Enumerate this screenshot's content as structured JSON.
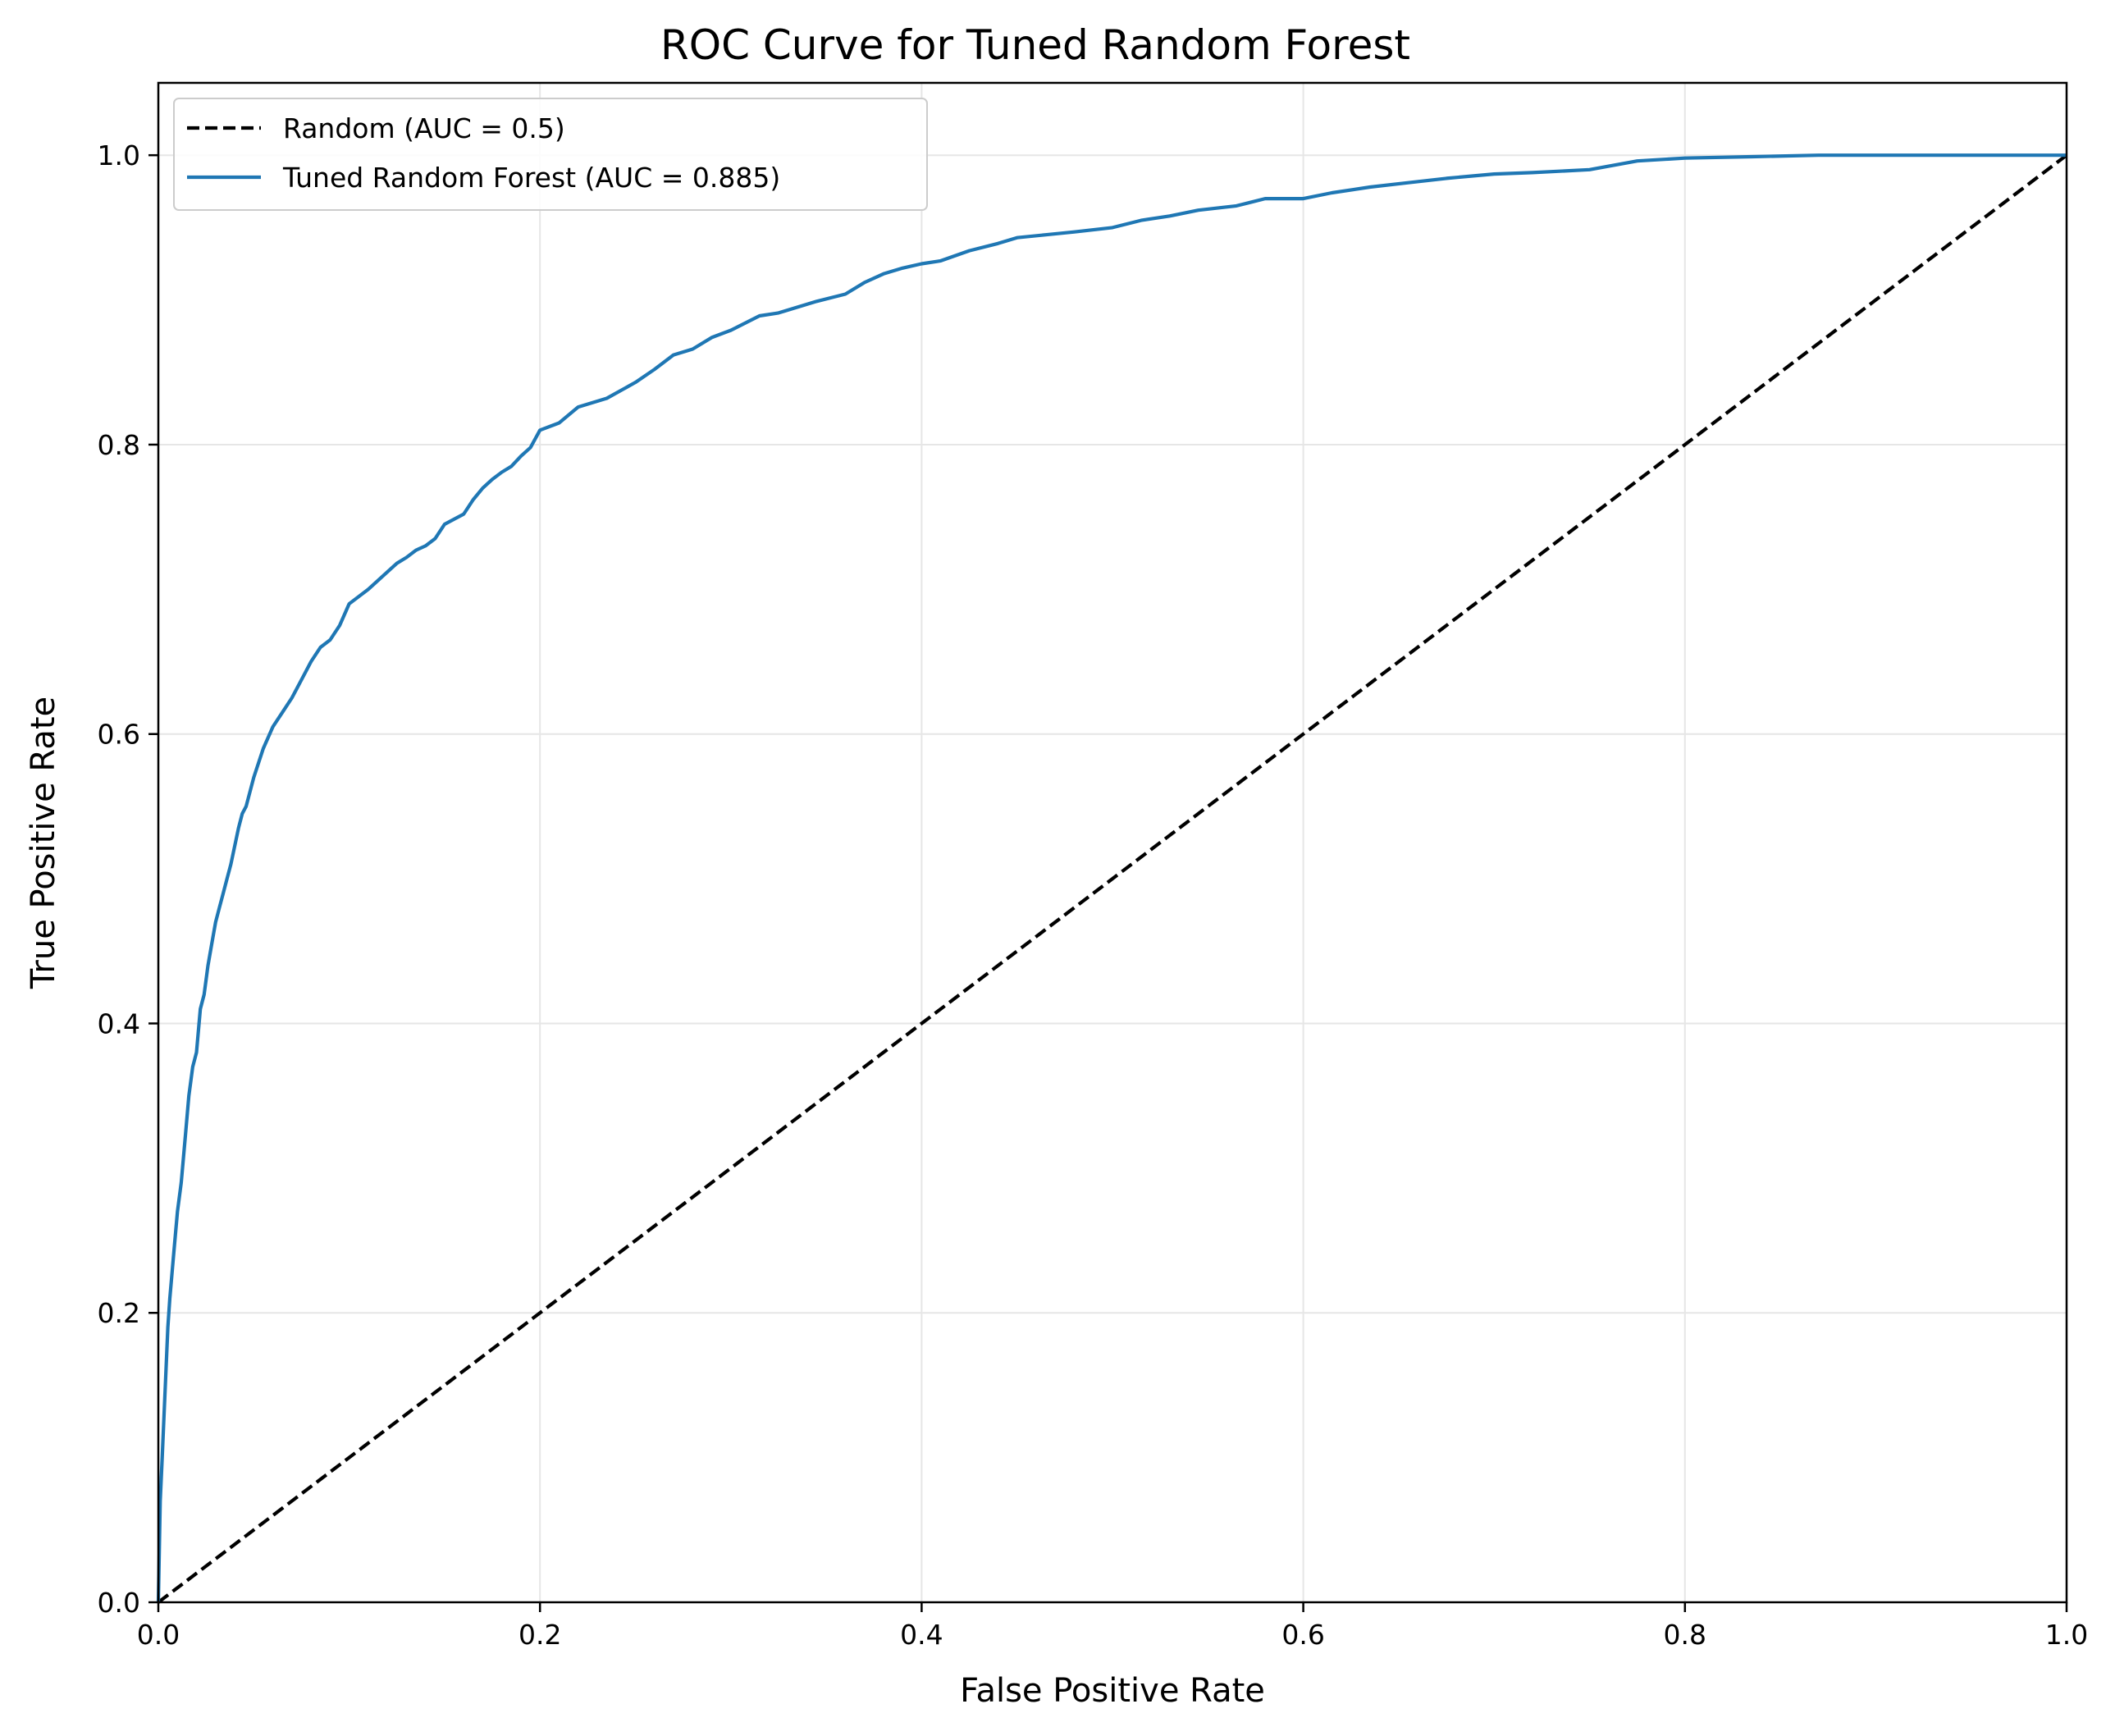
{
  "chart_data": {
    "type": "line",
    "title": "ROC Curve for Tuned Random Forest",
    "xlabel": "False Positive Rate",
    "ylabel": "True Positive Rate",
    "xlim": [
      0.0,
      1.0
    ],
    "ylim": [
      0.0,
      1.05
    ],
    "xticks": [
      0.0,
      0.2,
      0.4,
      0.6,
      0.8,
      1.0
    ],
    "xtick_labels": [
      "0.0",
      "0.2",
      "0.4",
      "0.6",
      "0.8",
      "1.0"
    ],
    "yticks": [
      0.0,
      0.2,
      0.4,
      0.6,
      0.8,
      1.0
    ],
    "ytick_labels": [
      "0.0",
      "0.2",
      "0.4",
      "0.6",
      "0.8",
      "1.0"
    ],
    "grid": true,
    "legend_position": "top-left",
    "series": [
      {
        "name": "Random (AUC = 0.5)",
        "color": "#000000",
        "style": "dashed",
        "x": [
          0.0,
          1.0
        ],
        "y": [
          0.0,
          1.0
        ]
      },
      {
        "name": "Tuned Random Forest (AUC = 0.885)",
        "color": "#1f77b4",
        "style": "solid",
        "x": [
          0.0,
          0.001,
          0.002,
          0.003,
          0.004,
          0.005,
          0.006,
          0.008,
          0.01,
          0.012,
          0.014,
          0.016,
          0.018,
          0.02,
          0.022,
          0.024,
          0.026,
          0.028,
          0.03,
          0.032,
          0.034,
          0.036,
          0.038,
          0.042,
          0.044,
          0.046,
          0.05,
          0.055,
          0.06,
          0.065,
          0.07,
          0.072,
          0.076,
          0.08,
          0.085,
          0.09,
          0.095,
          0.1,
          0.11,
          0.12,
          0.125,
          0.13,
          0.135,
          0.14,
          0.145,
          0.15,
          0.16,
          0.165,
          0.17,
          0.175,
          0.18,
          0.185,
          0.19,
          0.195,
          0.2,
          0.21,
          0.22,
          0.235,
          0.25,
          0.26,
          0.27,
          0.28,
          0.29,
          0.3,
          0.315,
          0.325,
          0.345,
          0.36,
          0.37,
          0.38,
          0.39,
          0.4,
          0.41,
          0.425,
          0.44,
          0.45,
          0.465,
          0.48,
          0.5,
          0.515,
          0.53,
          0.545,
          0.565,
          0.58,
          0.6,
          0.615,
          0.635,
          0.655,
          0.675,
          0.7,
          0.72,
          0.75,
          0.775,
          0.8,
          0.835,
          0.87,
          1.0
        ],
        "y": [
          0.0,
          0.07,
          0.1,
          0.13,
          0.16,
          0.19,
          0.21,
          0.24,
          0.27,
          0.29,
          0.32,
          0.35,
          0.37,
          0.38,
          0.41,
          0.42,
          0.44,
          0.455,
          0.47,
          0.48,
          0.49,
          0.5,
          0.51,
          0.535,
          0.545,
          0.55,
          0.57,
          0.59,
          0.605,
          0.615,
          0.625,
          0.63,
          0.64,
          0.65,
          0.66,
          0.665,
          0.675,
          0.69,
          0.7,
          0.712,
          0.718,
          0.722,
          0.727,
          0.73,
          0.735,
          0.745,
          0.752,
          0.762,
          0.77,
          0.776,
          0.781,
          0.785,
          0.792,
          0.798,
          0.81,
          0.815,
          0.826,
          0.832,
          0.843,
          0.852,
          0.862,
          0.866,
          0.874,
          0.879,
          0.889,
          0.891,
          0.899,
          0.904,
          0.912,
          0.918,
          0.922,
          0.925,
          0.927,
          0.934,
          0.939,
          0.943,
          0.945,
          0.947,
          0.95,
          0.955,
          0.958,
          0.962,
          0.965,
          0.97,
          0.97,
          0.974,
          0.978,
          0.981,
          0.984,
          0.987,
          0.988,
          0.99,
          0.996,
          0.998,
          0.999,
          1.0,
          1.0
        ]
      }
    ]
  }
}
